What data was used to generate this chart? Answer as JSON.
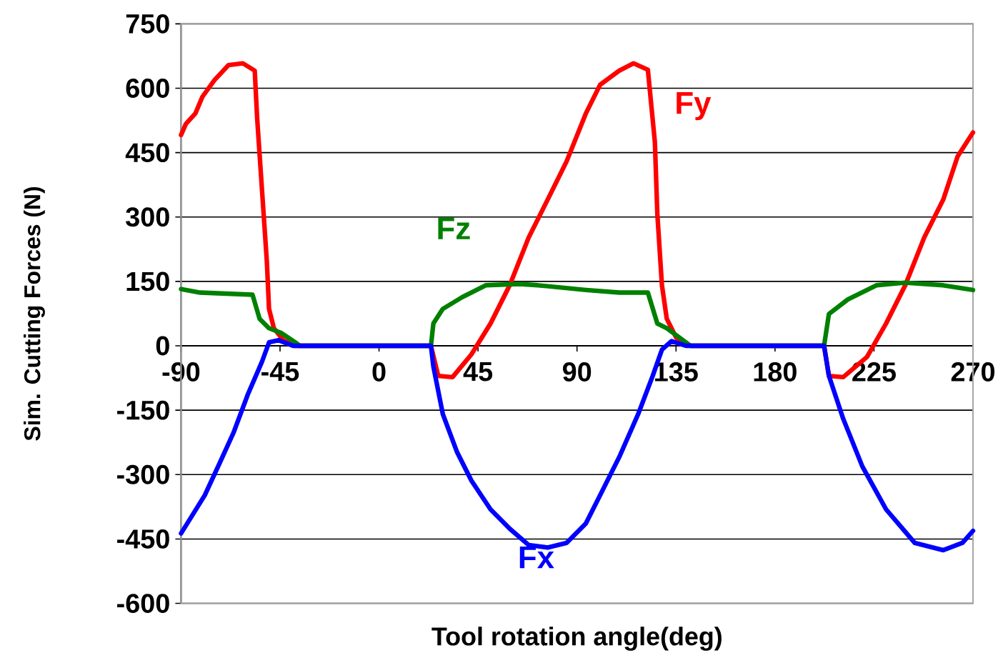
{
  "chart_data": {
    "type": "line",
    "xlabel": "Tool rotation angle(deg)",
    "ylabel": "Sim. Cutting Forces (N)",
    "xlim": [
      -90,
      270
    ],
    "ylim": [
      -600,
      750
    ],
    "xticks": [
      -90,
      -45,
      0,
      45,
      90,
      135,
      180,
      225,
      270
    ],
    "yticks": [
      -600,
      -450,
      -300,
      -150,
      0,
      150,
      300,
      450,
      600,
      750
    ],
    "grid": "y",
    "marker": "none",
    "line_style": "solid",
    "series": [
      {
        "name": "Fy",
        "color": "#ff0000",
        "x": [
          -90,
          -87.8,
          -83.5,
          -80.3,
          -74.8,
          -68.4,
          -61.9,
          -56.5,
          -55.4,
          -53.2,
          -51.0,
          -50.0,
          -47.8,
          -43.5,
          -38.1,
          23.6,
          26.9,
          33.4,
          42,
          50.7,
          59.4,
          68,
          76.7,
          85.3,
          94,
          100.5,
          109.2,
          115.7,
          122.2,
          125.4,
          126.5,
          128.6,
          130.8,
          135.1,
          141.6,
          202.3,
          204.5,
          211,
          221.8,
          230.5,
          239.2,
          247.8,
          256.5,
          263,
          270
        ],
        "values": [
          491,
          517,
          541,
          580,
          619,
          654,
          658,
          641,
          530,
          363,
          197,
          86,
          41,
          13,
          0,
          0,
          -70,
          -73,
          -20,
          52,
          141,
          252,
          341,
          430,
          541,
          608,
          641,
          658,
          643,
          474,
          308,
          141,
          63,
          19,
          0,
          0,
          -70,
          -73,
          -26,
          52,
          141,
          252,
          341,
          441,
          497
        ]
      },
      {
        "name": "Fz",
        "color": "#008000",
        "x": [
          -90,
          -81.3,
          -57.5,
          -54.3,
          -50,
          -44.5,
          -38.1,
          -35.9,
          23.6,
          24.7,
          29,
          37.7,
          48.5,
          63.7,
          72.3,
          94,
          109.2,
          122.2,
          126.5,
          130.8,
          141.6,
          202.3,
          204.5,
          213.1,
          226.1,
          239.1,
          256.4,
          270
        ],
        "values": [
          132,
          124,
          119,
          63,
          41,
          30,
          8,
          0,
          0,
          52,
          86,
          113,
          141,
          144,
          141,
          130,
          124,
          124,
          52,
          41,
          0,
          0,
          74,
          108,
          141,
          147,
          141,
          130
        ]
      },
      {
        "name": "Fx",
        "color": "#0000ff",
        "x": [
          -90,
          -79.2,
          -72.7,
          -66.2,
          -59.7,
          -53.2,
          -50,
          -45.6,
          -39.1,
          23.6,
          24.7,
          29,
          35.5,
          42,
          50.7,
          59.4,
          68,
          76.7,
          85.3,
          94,
          100.5,
          109.2,
          117.8,
          124.4,
          128.6,
          133,
          139.5,
          202.3,
          204.5,
          211,
          219.7,
          230.5,
          243.5,
          256.5,
          265.2,
          270
        ],
        "values": [
          -437,
          -348,
          -276,
          -203,
          -114,
          -37,
          8,
          13,
          0,
          0,
          -48,
          -159,
          -248,
          -314,
          -381,
          -426,
          -464,
          -470,
          -459,
          -414,
          -348,
          -259,
          -159,
          -70,
          -9,
          11,
          0,
          0,
          -70,
          -170,
          -281,
          -381,
          -459,
          -476,
          -459,
          -431
        ]
      }
    ]
  }
}
